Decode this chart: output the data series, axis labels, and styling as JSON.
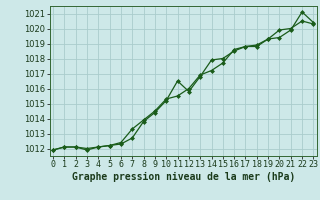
{
  "title": "Graphe pression niveau de la mer (hPa)",
  "bg_color": "#cde8e8",
  "grid_color": "#aacccc",
  "line_color": "#1a5c1a",
  "x_labels": [
    "0",
    "1",
    "2",
    "3",
    "4",
    "5",
    "6",
    "7",
    "8",
    "9",
    "10",
    "11",
    "12",
    "13",
    "14",
    "15",
    "16",
    "17",
    "18",
    "19",
    "20",
    "21",
    "22",
    "23"
  ],
  "xlim": [
    -0.3,
    23.3
  ],
  "ylim": [
    1011.5,
    1021.5
  ],
  "yticks": [
    1012,
    1013,
    1014,
    1015,
    1016,
    1017,
    1018,
    1019,
    1020,
    1021
  ],
  "series1_x": [
    0,
    1,
    2,
    3,
    4,
    5,
    6,
    7,
    8,
    9,
    10,
    11,
    12,
    13,
    14,
    15,
    16,
    17,
    18,
    19,
    20,
    21,
    22,
    23
  ],
  "series1_y": [
    1011.9,
    1012.1,
    1012.1,
    1011.9,
    1012.1,
    1012.2,
    1012.3,
    1012.7,
    1013.8,
    1014.4,
    1015.2,
    1016.5,
    1015.8,
    1016.8,
    1017.9,
    1018.0,
    1018.5,
    1018.8,
    1018.8,
    1019.3,
    1019.4,
    1019.9,
    1021.1,
    1020.4
  ],
  "series2_x": [
    0,
    1,
    2,
    3,
    4,
    5,
    6,
    7,
    8,
    9,
    10,
    11,
    12,
    13,
    14,
    15,
    16,
    17,
    18,
    19,
    20,
    21,
    22,
    23
  ],
  "series2_y": [
    1011.9,
    1012.1,
    1012.1,
    1012.0,
    1012.1,
    1012.2,
    1012.4,
    1013.3,
    1013.9,
    1014.5,
    1015.3,
    1015.5,
    1016.0,
    1016.9,
    1017.2,
    1017.7,
    1018.6,
    1018.8,
    1018.9,
    1019.3,
    1019.9,
    1020.0,
    1020.5,
    1020.3
  ],
  "marker": "D",
  "markersize": 2.0,
  "linewidth": 0.9,
  "tick_fontsize": 6.0,
  "title_fontsize": 7.0
}
